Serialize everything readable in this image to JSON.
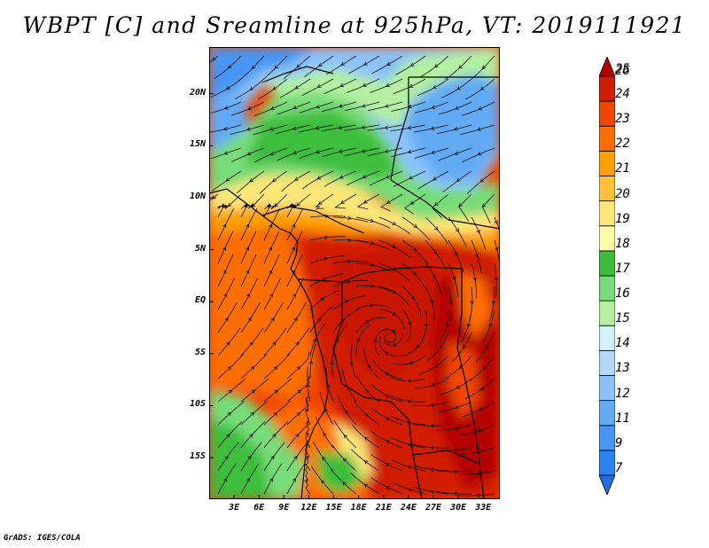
{
  "title": "WBPT [C] and Sreamline at 925hPa, VT: 2019111921",
  "credit": "GrADS: IGES/COLA",
  "map": {
    "lat_range": [
      -19,
      24.5
    ],
    "lon_range": [
      0,
      35
    ],
    "lat_ticks": [
      {
        "value": 20,
        "label": "20N"
      },
      {
        "value": 15,
        "label": "15N"
      },
      {
        "value": 10,
        "label": "10N"
      },
      {
        "value": 5,
        "label": "5N"
      },
      {
        "value": 0,
        "label": "EQ"
      },
      {
        "value": -5,
        "label": "5S"
      },
      {
        "value": -10,
        "label": "10S"
      },
      {
        "value": -15,
        "label": "15S"
      }
    ],
    "lon_ticks": [
      {
        "value": 3,
        "label": "3E"
      },
      {
        "value": 6,
        "label": "6E"
      },
      {
        "value": 9,
        "label": "9E"
      },
      {
        "value": 12,
        "label": "12E"
      },
      {
        "value": 15,
        "label": "15E"
      },
      {
        "value": 18,
        "label": "18E"
      },
      {
        "value": 21,
        "label": "21E"
      },
      {
        "value": 24,
        "label": "24E"
      },
      {
        "value": 27,
        "label": "27E"
      },
      {
        "value": 30,
        "label": "30E"
      },
      {
        "value": 33,
        "label": "33E"
      }
    ]
  },
  "colorbar": {
    "levels": [
      "7",
      "9",
      "11",
      "12",
      "13",
      "14",
      "15",
      "16",
      "17",
      "18",
      "19",
      "20",
      "21",
      "22",
      "23",
      "24",
      "25",
      "26"
    ],
    "colors": [
      "#1e6ee6",
      "#2d82f0",
      "#4696f5",
      "#64aaf5",
      "#8cc3fa",
      "#b4d7fa",
      "#d2f0fa",
      "#b4f0a0",
      "#78dc78",
      "#3cbe3c",
      "#fffaaa",
      "#ffe678",
      "#ffc03c",
      "#ffa000",
      "#ff6e00",
      "#f04600",
      "#d21e00",
      "#b40000"
    ]
  }
}
